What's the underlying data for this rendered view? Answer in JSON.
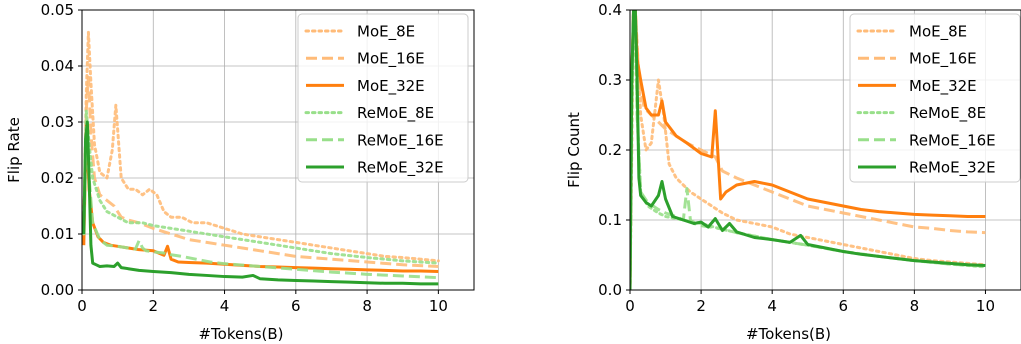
{
  "chart_data": [
    {
      "type": "line",
      "xlabel": "#Tokens(B)",
      "ylabel": "Flip Rate",
      "xlim": [
        0,
        11
      ],
      "ylim": [
        0,
        0.05
      ],
      "xticks": [
        0,
        2,
        4,
        6,
        8,
        10
      ],
      "yticks": [
        0.0,
        0.01,
        0.02,
        0.03,
        0.04,
        0.05
      ],
      "ytick_labels": [
        "0.00",
        "0.01",
        "0.02",
        "0.03",
        "0.04",
        "0.05"
      ],
      "grid": true,
      "legend_position": "top-right",
      "series": [
        {
          "name": "MoE_8E",
          "color": "#ffbb78",
          "dash": "dotted",
          "x": [
            0.05,
            0.12,
            0.18,
            0.25,
            0.35,
            0.5,
            0.7,
            0.85,
            0.95,
            1.1,
            1.3,
            1.5,
            1.7,
            1.9,
            2.1,
            2.3,
            2.5,
            2.8,
            3.1,
            3.5,
            4,
            4.5,
            5,
            5.5,
            6,
            6.5,
            7,
            7.5,
            8,
            8.5,
            9,
            9.5,
            10
          ],
          "y": [
            0.01,
            0.035,
            0.046,
            0.037,
            0.026,
            0.021,
            0.02,
            0.025,
            0.033,
            0.02,
            0.018,
            0.018,
            0.017,
            0.018,
            0.017,
            0.014,
            0.013,
            0.013,
            0.012,
            0.012,
            0.011,
            0.01,
            0.0095,
            0.009,
            0.0085,
            0.008,
            0.0075,
            0.007,
            0.0065,
            0.006,
            0.0058,
            0.0055,
            0.0052
          ]
        },
        {
          "name": "MoE_16E",
          "color": "#ffbb78",
          "dash": "dashed",
          "x": [
            0.05,
            0.12,
            0.18,
            0.25,
            0.35,
            0.5,
            0.7,
            0.9,
            1.1,
            1.3,
            1.6,
            2,
            2.5,
            3,
            3.5,
            4,
            4.5,
            5,
            5.5,
            6,
            7,
            8,
            9,
            10
          ],
          "y": [
            0.012,
            0.032,
            0.038,
            0.028,
            0.02,
            0.017,
            0.016,
            0.015,
            0.013,
            0.0125,
            0.012,
            0.011,
            0.01,
            0.009,
            0.0085,
            0.008,
            0.0075,
            0.007,
            0.0065,
            0.006,
            0.0055,
            0.005,
            0.0045,
            0.0042
          ]
        },
        {
          "name": "MoE_32E",
          "color": "#ff7f0e",
          "dash": "solid",
          "x": [
            0.05,
            0.12,
            0.2,
            0.3,
            0.45,
            0.6,
            0.8,
            1,
            1.3,
            1.6,
            2,
            2.3,
            2.4,
            2.5,
            2.7,
            3,
            3.5,
            4,
            4.5,
            5,
            5.5,
            6,
            6.5,
            7,
            7.5,
            8,
            8.5,
            9,
            9.5,
            10
          ],
          "y": [
            0.008,
            0.03,
            0.018,
            0.012,
            0.0095,
            0.0085,
            0.008,
            0.0078,
            0.0075,
            0.0072,
            0.007,
            0.0062,
            0.0078,
            0.0055,
            0.005,
            0.0049,
            0.0048,
            0.0046,
            0.0044,
            0.0042,
            0.0041,
            0.004,
            0.0039,
            0.0038,
            0.0037,
            0.0036,
            0.0035,
            0.0034,
            0.0034,
            0.0033
          ]
        },
        {
          "name": "ReMoE_8E",
          "color": "#98df8a",
          "dash": "dotted",
          "x": [
            0.05,
            0.12,
            0.2,
            0.3,
            0.5,
            0.7,
            1,
            1.3,
            1.7,
            2,
            2.5,
            3,
            3.5,
            4,
            5,
            6,
            7,
            8,
            9,
            10
          ],
          "y": [
            0.01,
            0.032,
            0.026,
            0.02,
            0.016,
            0.014,
            0.013,
            0.012,
            0.012,
            0.0115,
            0.011,
            0.0105,
            0.01,
            0.0095,
            0.0085,
            0.0075,
            0.0065,
            0.0058,
            0.0052,
            0.0048
          ]
        },
        {
          "name": "ReMoE_16E",
          "color": "#98df8a",
          "dash": "dashed",
          "x": [
            0.05,
            0.12,
            0.2,
            0.3,
            0.5,
            0.7,
            1,
            1.3,
            1.5,
            1.6,
            1.7,
            1.8,
            2,
            2.3,
            2.5,
            2.8,
            3.2,
            3.6,
            4,
            5,
            6,
            7,
            8,
            9,
            10
          ],
          "y": [
            0.01,
            0.029,
            0.02,
            0.012,
            0.009,
            0.008,
            0.0078,
            0.0075,
            0.0073,
            0.0088,
            0.0075,
            0.007,
            0.0068,
            0.0066,
            0.0063,
            0.006,
            0.0055,
            0.005,
            0.0047,
            0.0042,
            0.0037,
            0.0032,
            0.0028,
            0.0025,
            0.0022
          ]
        },
        {
          "name": "ReMoE_32E",
          "color": "#2ca02c",
          "dash": "solid",
          "x": [
            0.05,
            0.1,
            0.15,
            0.2,
            0.25,
            0.3,
            0.4,
            0.5,
            0.7,
            0.9,
            1,
            1.1,
            1.3,
            1.6,
            2,
            2.5,
            3,
            3.5,
            4,
            4.5,
            4.8,
            5,
            5.5,
            6,
            6.5,
            7,
            7.5,
            8,
            8.5,
            9,
            9.5,
            10
          ],
          "y": [
            0.01,
            0.027,
            0.03,
            0.02,
            0.008,
            0.0048,
            0.0045,
            0.0042,
            0.0043,
            0.0042,
            0.0048,
            0.004,
            0.0038,
            0.0035,
            0.0033,
            0.0031,
            0.0028,
            0.0026,
            0.0024,
            0.0023,
            0.0026,
            0.002,
            0.0018,
            0.0017,
            0.0016,
            0.0015,
            0.0014,
            0.0013,
            0.0012,
            0.0012,
            0.0011,
            0.0011
          ]
        }
      ]
    },
    {
      "type": "line",
      "xlabel": "#Tokens(B)",
      "ylabel": "Flip Count",
      "xlim": [
        0,
        11
      ],
      "ylim": [
        0,
        0.4
      ],
      "xticks": [
        0,
        2,
        4,
        6,
        8,
        10
      ],
      "yticks": [
        0.0,
        0.1,
        0.2,
        0.3,
        0.4
      ],
      "ytick_labels": [
        "0.0",
        "0.1",
        "0.2",
        "0.3",
        "0.4"
      ],
      "grid": true,
      "legend_position": "top-right",
      "series": [
        {
          "name": "MoE_8E",
          "color": "#ffbb78",
          "dash": "dotted",
          "x": [
            0,
            0.05,
            0.1,
            0.15,
            0.2,
            0.3,
            0.45,
            0.6,
            0.8,
            0.95,
            1.1,
            1.3,
            1.5,
            1.7,
            2,
            2.3,
            2.6,
            3,
            3.5,
            4,
            4.5,
            5,
            5.5,
            6,
            6.5,
            7,
            7.5,
            8,
            8.5,
            9,
            9.5,
            10
          ],
          "y": [
            0,
            0.2,
            0.4,
            0.4,
            0.35,
            0.25,
            0.2,
            0.21,
            0.3,
            0.25,
            0.18,
            0.16,
            0.15,
            0.14,
            0.13,
            0.12,
            0.11,
            0.1,
            0.095,
            0.09,
            0.08,
            0.075,
            0.07,
            0.065,
            0.06,
            0.055,
            0.05,
            0.045,
            0.042,
            0.04,
            0.038,
            0.036
          ]
        },
        {
          "name": "MoE_16E",
          "color": "#ffbb78",
          "dash": "dashed",
          "x": [
            0,
            0.05,
            0.1,
            0.15,
            0.25,
            0.4,
            0.6,
            0.8,
            1,
            1.3,
            1.6,
            2,
            2.4,
            2.6,
            3,
            3.5,
            4,
            4.5,
            5,
            5.5,
            6,
            6.5,
            7,
            7.5,
            8,
            8.5,
            9,
            9.5,
            10
          ],
          "y": [
            0,
            0.3,
            0.4,
            0.4,
            0.3,
            0.26,
            0.25,
            0.24,
            0.23,
            0.22,
            0.21,
            0.2,
            0.19,
            0.17,
            0.16,
            0.15,
            0.14,
            0.13,
            0.12,
            0.115,
            0.11,
            0.105,
            0.1,
            0.095,
            0.09,
            0.088,
            0.085,
            0.083,
            0.082
          ]
        },
        {
          "name": "MoE_32E",
          "color": "#ff7f0e",
          "dash": "solid",
          "x": [
            0,
            0.05,
            0.1,
            0.15,
            0.2,
            0.3,
            0.45,
            0.6,
            0.8,
            0.9,
            1,
            1.3,
            1.6,
            2,
            2.3,
            2.4,
            2.55,
            2.7,
            3,
            3.5,
            4,
            4.5,
            5,
            5.5,
            6,
            6.5,
            7,
            7.5,
            8,
            8.5,
            9,
            9.5,
            10
          ],
          "y": [
            0,
            0.3,
            0.4,
            0.4,
            0.33,
            0.3,
            0.26,
            0.25,
            0.25,
            0.27,
            0.24,
            0.22,
            0.21,
            0.195,
            0.19,
            0.256,
            0.13,
            0.14,
            0.15,
            0.155,
            0.15,
            0.14,
            0.13,
            0.125,
            0.12,
            0.115,
            0.112,
            0.11,
            0.108,
            0.107,
            0.106,
            0.105,
            0.105
          ]
        },
        {
          "name": "ReMoE_8E",
          "color": "#98df8a",
          "dash": "dotted",
          "x": [
            0,
            0.05,
            0.1,
            0.15,
            0.2,
            0.3,
            0.5,
            0.8,
            1,
            1.5,
            2,
            2.5,
            3,
            3.5,
            4,
            5,
            6,
            7,
            8,
            9,
            10
          ],
          "y": [
            0,
            0.25,
            0.4,
            0.4,
            0.25,
            0.14,
            0.12,
            0.11,
            0.105,
            0.1,
            0.095,
            0.088,
            0.082,
            0.077,
            0.072,
            0.064,
            0.055,
            0.048,
            0.042,
            0.037,
            0.033
          ]
        },
        {
          "name": "ReMoE_16E",
          "color": "#98df8a",
          "dash": "dashed",
          "x": [
            0,
            0.05,
            0.1,
            0.15,
            0.2,
            0.3,
            0.5,
            0.8,
            1,
            1.3,
            1.5,
            1.6,
            1.7,
            1.8,
            2,
            2.5,
            3,
            3.5,
            4,
            5,
            6,
            7,
            8,
            9,
            10
          ],
          "y": [
            0,
            0.25,
            0.4,
            0.4,
            0.25,
            0.14,
            0.125,
            0.115,
            0.11,
            0.105,
            0.1,
            0.145,
            0.1,
            0.095,
            0.092,
            0.088,
            0.082,
            0.077,
            0.072,
            0.064,
            0.055,
            0.048,
            0.042,
            0.037,
            0.034
          ]
        },
        {
          "name": "ReMoE_32E",
          "color": "#2ca02c",
          "dash": "solid",
          "x": [
            0,
            0.05,
            0.1,
            0.15,
            0.2,
            0.25,
            0.3,
            0.45,
            0.6,
            0.8,
            0.9,
            1,
            1.2,
            1.5,
            1.8,
            2,
            2.2,
            2.4,
            2.6,
            2.8,
            3,
            3.5,
            4,
            4.5,
            4.8,
            5,
            5.5,
            6,
            6.5,
            7,
            7.5,
            8,
            8.5,
            9,
            9.5,
            10
          ],
          "y": [
            0,
            0.3,
            0.4,
            0.4,
            0.3,
            0.16,
            0.135,
            0.125,
            0.12,
            0.135,
            0.155,
            0.13,
            0.105,
            0.1,
            0.095,
            0.097,
            0.09,
            0.102,
            0.085,
            0.095,
            0.083,
            0.075,
            0.072,
            0.068,
            0.078,
            0.065,
            0.06,
            0.055,
            0.051,
            0.048,
            0.045,
            0.042,
            0.04,
            0.038,
            0.036,
            0.035
          ]
        }
      ]
    }
  ]
}
